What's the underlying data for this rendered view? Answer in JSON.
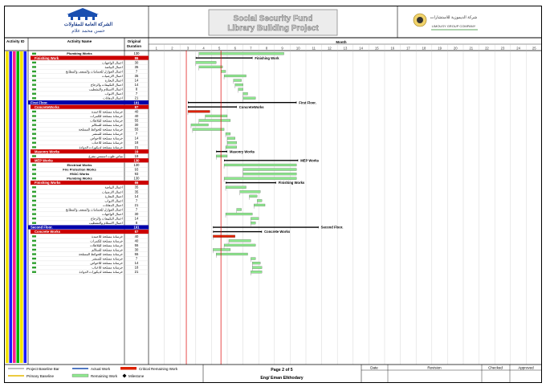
{
  "header": {
    "logo_left_ar": "الشركة العامة للمقاولات",
    "logo_left_ar2": "حسن محمد علام",
    "title_line1": "Social Security Fund",
    "title_line2": "Library Building Project",
    "logo_right_ar": "شركة الديموزية للاستشارات",
    "logo_right_en": "LIMOUSY GROUP COMPANY"
  },
  "columns": {
    "activity_id": "Activity ID",
    "activity_name": "Activity Name",
    "duration": "Original Duration",
    "timeline_unit": "Month"
  },
  "months": [
    "1",
    "2",
    "3",
    "4",
    "5",
    "6",
    "7",
    "8",
    "9",
    "10",
    "11",
    "12",
    "13",
    "14",
    "15",
    "16",
    "17",
    "18",
    "19",
    "20",
    "21",
    "22",
    "23",
    "24",
    "25"
  ],
  "rows": [
    {
      "type": "task",
      "name": "Plumbing Works",
      "dur": "130",
      "bars": [
        {
          "kind": "rem",
          "s": 4.2,
          "e": 9.6
        }
      ]
    },
    {
      "type": "wbs2",
      "name": "Finishing Work",
      "dur": "86",
      "label": "Finishing Work",
      "span": [
        4.0,
        7.6
      ]
    },
    {
      "type": "task",
      "name": "اعمال الواجهات",
      "dur": "30",
      "bars": [
        {
          "kind": "rem",
          "s": 4.0,
          "e": 5.3
        }
      ]
    },
    {
      "type": "task",
      "name": "اعمال البياضة",
      "dur": "35",
      "bars": [
        {
          "kind": "rem",
          "s": 4.2,
          "e": 5.7
        }
      ]
    },
    {
      "type": "task",
      "name": "اعمال العوازل للحمامات والسقف والمطابخ",
      "name2": "والارضيات والتكييفات الازمية",
      "dur": "7",
      "bars": [
        {
          "kind": "rem",
          "s": 5.6,
          "e": 5.9
        }
      ]
    },
    {
      "type": "task",
      "name": "اعمال الارضيات",
      "dur": "35",
      "bars": [
        {
          "kind": "rem",
          "s": 5.8,
          "e": 7.2
        }
      ]
    },
    {
      "type": "task",
      "name": "اعمال النجارة",
      "dur": "14",
      "bars": [
        {
          "kind": "rem",
          "s": 6.4,
          "e": 6.9
        }
      ]
    },
    {
      "type": "task",
      "name": "اعمال التكييفات والزجاج",
      "dur": "14",
      "bars": [
        {
          "kind": "rem",
          "s": 6.5,
          "e": 7.0
        }
      ]
    },
    {
      "type": "task",
      "name": "اعمال الاستلام والتشطيب",
      "dur": "8",
      "bars": [
        {
          "kind": "rem",
          "s": 6.7,
          "e": 7.0
        }
      ]
    },
    {
      "type": "task",
      "name": "اعمال الابواب",
      "dur": "7",
      "bars": [
        {
          "kind": "rem",
          "s": 7.0,
          "e": 7.3
        }
      ]
    },
    {
      "type": "task",
      "name": "اعمال الدهانات",
      "dur": "21",
      "bars": [
        {
          "kind": "rem",
          "s": 7.0,
          "e": 7.8
        }
      ]
    },
    {
      "type": "wbs1",
      "name": "First Floor.",
      "dur": "191",
      "label": "First Floor.",
      "span": [
        3.5,
        10.4
      ]
    },
    {
      "type": "wbs2",
      "name": "ConcreteWorks",
      "dur": "87",
      "label": "ConcreteWorks",
      "span": [
        3.5,
        6.6
      ]
    },
    {
      "type": "task",
      "name": "خرسانة مسلحة للاعمدة",
      "dur": "40",
      "bars": [
        {
          "kind": "crit",
          "s": 3.5,
          "e": 4.9
        }
      ]
    },
    {
      "type": "task",
      "name": "خرسانة مسلحة للكمرات",
      "dur": "40",
      "bars": [
        {
          "kind": "rem",
          "s": 4.6,
          "e": 6.0
        }
      ]
    },
    {
      "type": "task",
      "name": "خرسانة مسلحة للبلاطات",
      "dur": "55",
      "bars": [
        {
          "kind": "rem",
          "s": 4.2,
          "e": 6.2
        }
      ]
    },
    {
      "type": "task",
      "name": "خرسانة مسلحة للسلالم",
      "dur": "30",
      "bars": [
        {
          "kind": "rem",
          "s": 3.7,
          "e": 4.8
        }
      ]
    },
    {
      "type": "task",
      "name": "خرسانة مسلحة للحوائط المسلحة",
      "dur": "55",
      "bars": [
        {
          "kind": "rem",
          "s": 3.8,
          "e": 5.8
        }
      ]
    },
    {
      "type": "task",
      "name": "خرسانة مسلحة للمنشر",
      "dur": "7",
      "bars": [
        {
          "kind": "rem",
          "s": 5.9,
          "e": 6.2
        }
      ]
    },
    {
      "type": "task",
      "name": "خرسانة مسلحة للاحواض",
      "dur": "14",
      "bars": [
        {
          "kind": "rem",
          "s": 6.0,
          "e": 6.5
        }
      ]
    },
    {
      "type": "task",
      "name": "خرسانة مسلحة للاعتاب",
      "dur": "18",
      "bars": [
        {
          "kind": "rem",
          "s": 6.0,
          "e": 6.6
        }
      ]
    },
    {
      "type": "task",
      "name": "خرسانة مسلحة لديكورات الدوادة",
      "dur": "21",
      "bars": [
        {
          "kind": "rem",
          "s": 5.9,
          "e": 6.6
        }
      ]
    },
    {
      "type": "wbs2",
      "name": "Masonry Works",
      "dur": "19",
      "label": "Masonry Works",
      "span": [
        5.3,
        6.0
      ]
    },
    {
      "type": "task",
      "name": "مباني طوب اسمنتي مفرغ",
      "dur": "19",
      "bars": [
        {
          "kind": "rem",
          "s": 5.3,
          "e": 6.0
        }
      ]
    },
    {
      "type": "wbs2",
      "name": "MEP Works",
      "dur": "130",
      "label": "MEP Works",
      "span": [
        5.8,
        10.5
      ]
    },
    {
      "type": "task",
      "name": "Electrical Works",
      "dur": "130",
      "bars": [
        {
          "kind": "rem",
          "s": 5.8,
          "e": 10.4
        }
      ]
    },
    {
      "type": "task",
      "name": "Fire Protection Works",
      "dur": "93",
      "bars": [
        {
          "kind": "rem",
          "s": 7.0,
          "e": 10.4
        }
      ]
    },
    {
      "type": "task",
      "name": "HVAC Works",
      "dur": "93",
      "bars": [
        {
          "kind": "rem",
          "s": 7.0,
          "e": 10.4
        }
      ]
    },
    {
      "type": "task",
      "name": "Plumbing Works",
      "dur": "130",
      "bars": [
        {
          "kind": "rem",
          "s": 5.8,
          "e": 10.4
        }
      ]
    },
    {
      "type": "wbs2",
      "name": "Finishing Works",
      "dur": "86",
      "label": "Finishing Works",
      "span": [
        5.9,
        9.1
      ]
    },
    {
      "type": "task",
      "name": "اعمال البياضة",
      "dur": "35",
      "bars": [
        {
          "kind": "rem",
          "s": 5.9,
          "e": 7.2
        }
      ]
    },
    {
      "type": "task",
      "name": "اعمال الارضيات",
      "dur": "35",
      "bars": [
        {
          "kind": "rem",
          "s": 6.8,
          "e": 8.1
        }
      ]
    },
    {
      "type": "task",
      "name": "اعمال النجارة",
      "dur": "14",
      "bars": [
        {
          "kind": "rem",
          "s": 7.4,
          "e": 7.9
        }
      ]
    },
    {
      "type": "task",
      "name": "اعمال الابواب",
      "dur": "7",
      "bars": [
        {
          "kind": "rem",
          "s": 7.9,
          "e": 8.2
        }
      ]
    },
    {
      "type": "task",
      "name": "اعمال الدهانات",
      "dur": "21",
      "bars": [
        {
          "kind": "rem",
          "s": 7.7,
          "e": 8.4
        }
      ]
    },
    {
      "type": "task",
      "name": "اعمال العوازل للحمامات والسقف والمطابخ",
      "name2": "والارضيات والتكييفات الازمية",
      "dur": "7",
      "bars": [
        {
          "kind": "rem",
          "s": 6.6,
          "e": 6.9
        }
      ]
    },
    {
      "type": "task",
      "name": "اعمال الواجهات",
      "dur": "30",
      "bars": [
        {
          "kind": "rem",
          "s": 5.9,
          "e": 7.6
        }
      ]
    },
    {
      "type": "task",
      "name": "اعمال التكييفات والزجاج",
      "dur": "14",
      "bars": [
        {
          "kind": "rem",
          "s": 7.5,
          "e": 8.0
        }
      ]
    },
    {
      "type": "task",
      "name": "اعمال الاستلام والتشطيب",
      "dur": "8",
      "bars": [
        {
          "kind": "rem",
          "s": 7.5,
          "e": 7.8
        }
      ]
    },
    {
      "type": "wbs1",
      "name": "Second Floor.",
      "dur": "191",
      "label": "Second Floor.",
      "span": [
        5.1,
        11.8
      ]
    },
    {
      "type": "wbs2",
      "name": "Concrete Works",
      "dur": "87",
      "label": "Concrete Works",
      "span": [
        5.1,
        8.2
      ]
    },
    {
      "type": "task",
      "name": "خرسانة مسلحة للاعمدة",
      "dur": "40",
      "bars": [
        {
          "kind": "crit",
          "s": 5.1,
          "e": 6.5
        }
      ]
    },
    {
      "type": "task",
      "name": "خرسانة مسلحة للكمرات",
      "dur": "40",
      "bars": [
        {
          "kind": "rem",
          "s": 6.1,
          "e": 7.5
        }
      ]
    },
    {
      "type": "task",
      "name": "خرسانة مسلحة للبلاطات",
      "dur": "55",
      "bars": [
        {
          "kind": "rem",
          "s": 5.8,
          "e": 7.8
        }
      ]
    },
    {
      "type": "task",
      "name": "خرسانة مسلحة للسلالم",
      "dur": "30",
      "bars": [
        {
          "kind": "rem",
          "s": 5.1,
          "e": 6.2
        }
      ]
    },
    {
      "type": "task",
      "name": "خرسانة مسلحة للحوائط المسلحة",
      "dur": "55",
      "bars": [
        {
          "kind": "rem",
          "s": 5.3,
          "e": 7.3
        }
      ]
    },
    {
      "type": "task",
      "name": "خرسانة مسلحة للمنشر",
      "dur": "7",
      "bars": [
        {
          "kind": "rem",
          "s": 7.5,
          "e": 7.8
        }
      ]
    },
    {
      "type": "task",
      "name": "خرسانة مسلحة للاحواض",
      "dur": "14",
      "bars": [
        {
          "kind": "rem",
          "s": 7.6,
          "e": 8.1
        }
      ]
    },
    {
      "type": "task",
      "name": "خرسانة مسلحة للاعتاب",
      "dur": "18",
      "bars": [
        {
          "kind": "rem",
          "s": 7.6,
          "e": 8.2
        }
      ]
    },
    {
      "type": "task",
      "name": "خرسانة مسلحة لديكورات الدوادة",
      "dur": "21",
      "bars": [
        {
          "kind": "rem",
          "s": 7.5,
          "e": 8.2
        }
      ]
    }
  ],
  "today_lines": [
    3.4,
    5.6
  ],
  "legend": {
    "project_baseline": "Project Baseline Bar",
    "primary_baseline": "Primary Baseline",
    "actual_work": "Actual Work",
    "remaining_work": "Remaining Work",
    "critical_remaining": "Critical Remaining Work",
    "milestone": "Milestone"
  },
  "footer": {
    "page": "Page 2 of 5",
    "author": "Eng/ Eman Elkhodary",
    "date_col": "Date",
    "revision_col": "Revision",
    "checked_col": "Checked",
    "approved_col": "Approved"
  },
  "colors": {
    "title_fill": "#e8e8e8",
    "title_stroke": "#8a8a8a",
    "wbs_blue": "#0000aa",
    "wbs_red": "#cc0000",
    "remaining": "#8ee88e",
    "critical": "#dd2200",
    "today": "#dd0000"
  }
}
